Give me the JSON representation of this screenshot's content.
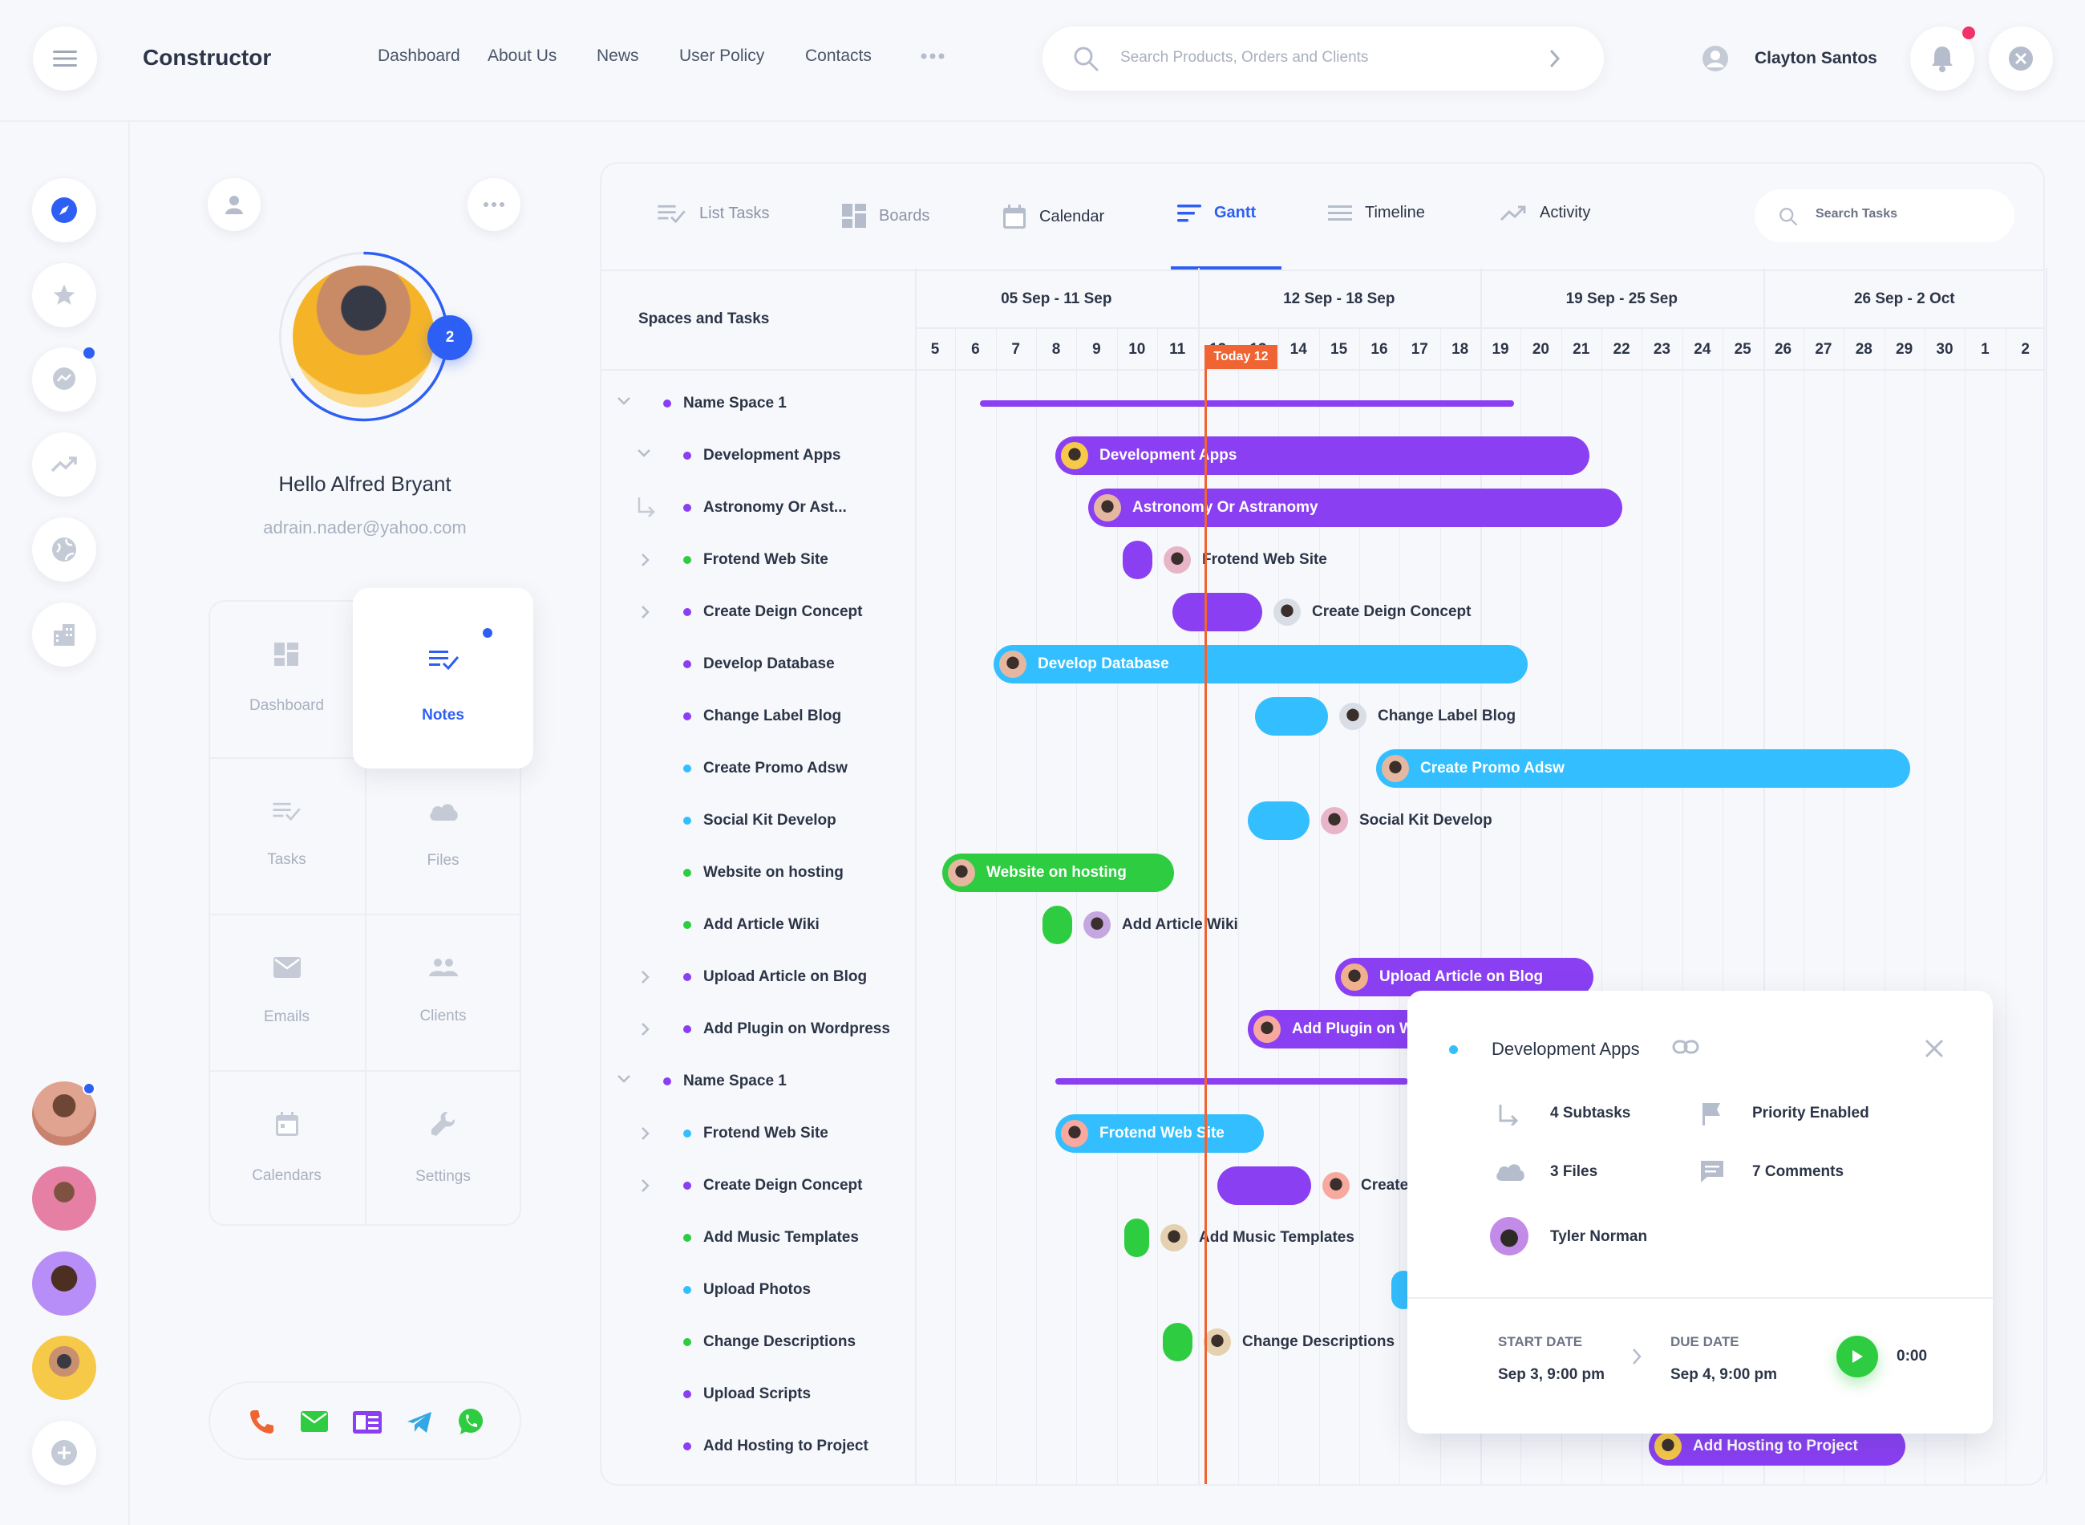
{
  "app": {
    "title": "Constructor"
  },
  "nav": {
    "links": [
      "Dashboard",
      "About Us",
      "News",
      "User Policy",
      "Contacts"
    ]
  },
  "search": {
    "placeholder": "Search Products, Orders and Clients"
  },
  "user": {
    "name": "Clayton Santos"
  },
  "profile": {
    "greeting": "Hello Alfred Bryant",
    "email": "adrain.nader@yahoo.com",
    "badge_count": "2"
  },
  "tiles": [
    "Dashboard",
    "Notes",
    "Tasks",
    "Files",
    "Emails",
    "Clients",
    "Calendars",
    "Settings"
  ],
  "tabs": [
    "List Tasks",
    "Boards",
    "Calendar",
    "Gantt",
    "Timeline",
    "Activity"
  ],
  "task_search": {
    "placeholder": "Search Tasks"
  },
  "gantt": {
    "spaces_header": "Spaces and Tasks",
    "weeks": [
      "05 Sep - 11 Sep",
      "12 Sep - 18 Sep",
      "19 Sep - 25 Sep",
      "26 Sep - 2 Oct"
    ],
    "days": [
      "5",
      "6",
      "7",
      "8",
      "9",
      "10",
      "11",
      "12",
      "13",
      "14",
      "15",
      "16",
      "17",
      "18",
      "19",
      "20",
      "21",
      "22",
      "23",
      "24",
      "25",
      "26",
      "27",
      "28",
      "29",
      "30",
      "1",
      "2"
    ],
    "today_label": "Today 12",
    "rows": [
      {
        "label": "Name Space 1",
        "type": "group",
        "color": "#8a3ff3"
      },
      {
        "label": "Development Apps",
        "color": "#8a3ff3",
        "bar": "Development Apps"
      },
      {
        "label": "Astronomy Or Ast...",
        "color": "#8a3ff3",
        "bar": "Astronomy Or Astranomy"
      },
      {
        "label": "Frotend Web Site",
        "color": "#2ecc40",
        "bar": "Frotend Web Site"
      },
      {
        "label": "Create Deign Concept",
        "color": "#8a3ff3",
        "bar": "Create Deign Concept"
      },
      {
        "label": "Develop Database",
        "color": "#8a3ff3",
        "bar": "Develop Database"
      },
      {
        "label": "Change Label Blog",
        "color": "#8a3ff3",
        "bar": "Change Label Blog"
      },
      {
        "label": "Create Promo Adsw",
        "color": "#33bfff",
        "bar": "Create Promo Adsw"
      },
      {
        "label": "Social Kit Develop",
        "color": "#33bfff",
        "bar": "Social Kit Develop"
      },
      {
        "label": "Website on hosting",
        "color": "#2ecc40",
        "bar": "Website on hosting"
      },
      {
        "label": "Add Article Wiki",
        "color": "#2ecc40",
        "bar": "Add Article Wiki"
      },
      {
        "label": "Upload Article on Blog",
        "color": "#8a3ff3",
        "bar": "Upload Article on Blog"
      },
      {
        "label": "Add Plugin on Wordpress",
        "color": "#8a3ff3",
        "bar": "Add Plugin on W"
      },
      {
        "label": "Name Space 1",
        "type": "group",
        "color": "#8a3ff3"
      },
      {
        "label": "Frotend Web Site",
        "color": "#33bfff",
        "bar": "Frotend Web Site"
      },
      {
        "label": "Create Deign Concept",
        "color": "#8a3ff3",
        "bar": "Create"
      },
      {
        "label": "Add Music Templates",
        "color": "#2ecc40",
        "bar": "Add Music Templates"
      },
      {
        "label": "Upload Photos",
        "color": "#33bfff",
        "bar": ""
      },
      {
        "label": "Change Descriptions",
        "color": "#2ecc40",
        "bar": "Change Descriptions"
      },
      {
        "label": "Upload Scripts",
        "color": "#8a3ff3",
        "bar": ""
      },
      {
        "label": "Add Hosting to Project",
        "color": "#8a3ff3",
        "bar": "Add Hosting to Project"
      }
    ]
  },
  "popup": {
    "title": "Development Apps",
    "subtasks": "4 Subtasks",
    "priority": "Priority Enabled",
    "files": "3 Files",
    "comments": "7 Comments",
    "assignee": "Tyler Norman",
    "start_label": "START DATE",
    "start_value": "Sep 3, 9:00 pm",
    "due_label": "DUE DATE",
    "due_value": "Sep 4, 9:00 pm",
    "timer": "0:00"
  },
  "colors": {
    "purple": "#8a3ff3",
    "blue": "#33bfff",
    "green": "#2ecc40",
    "accent": "#2d5ff4",
    "today": "#f06332"
  }
}
